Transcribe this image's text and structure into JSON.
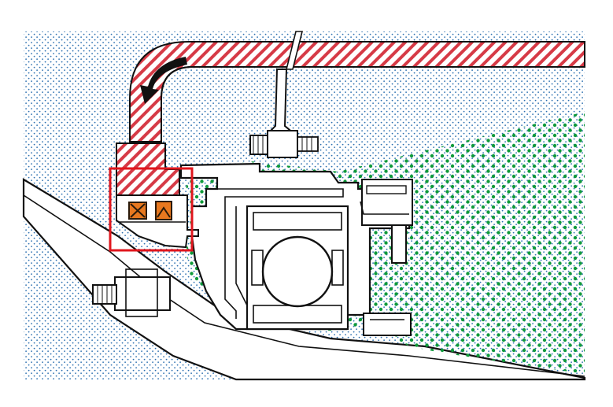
{
  "diagram": {
    "view": "bearing-chamber-cross-section",
    "colors": {
      "background": "#ffffff",
      "air_dots": "#2b6fb0",
      "oil_dots": "#0f9a3b",
      "hatch": "#d63a46",
      "hatch_bg": "#ffffff",
      "outline": "#111111",
      "part_fill": "#ffffff",
      "arrow": "#111111",
      "highlight_box": "#e0161d",
      "seal_fill": "#e8781f",
      "seal_stroke": "#2a1a0a"
    },
    "flow_arrow": {
      "icon": "curved-arrow-icon",
      "direction": "down-left"
    },
    "highlight": {
      "target": "seal-pair",
      "style": "red-rectangle"
    },
    "seals": [
      {
        "icon": "x-mark-seal-icon"
      },
      {
        "icon": "chevron-seal-icon"
      }
    ]
  }
}
